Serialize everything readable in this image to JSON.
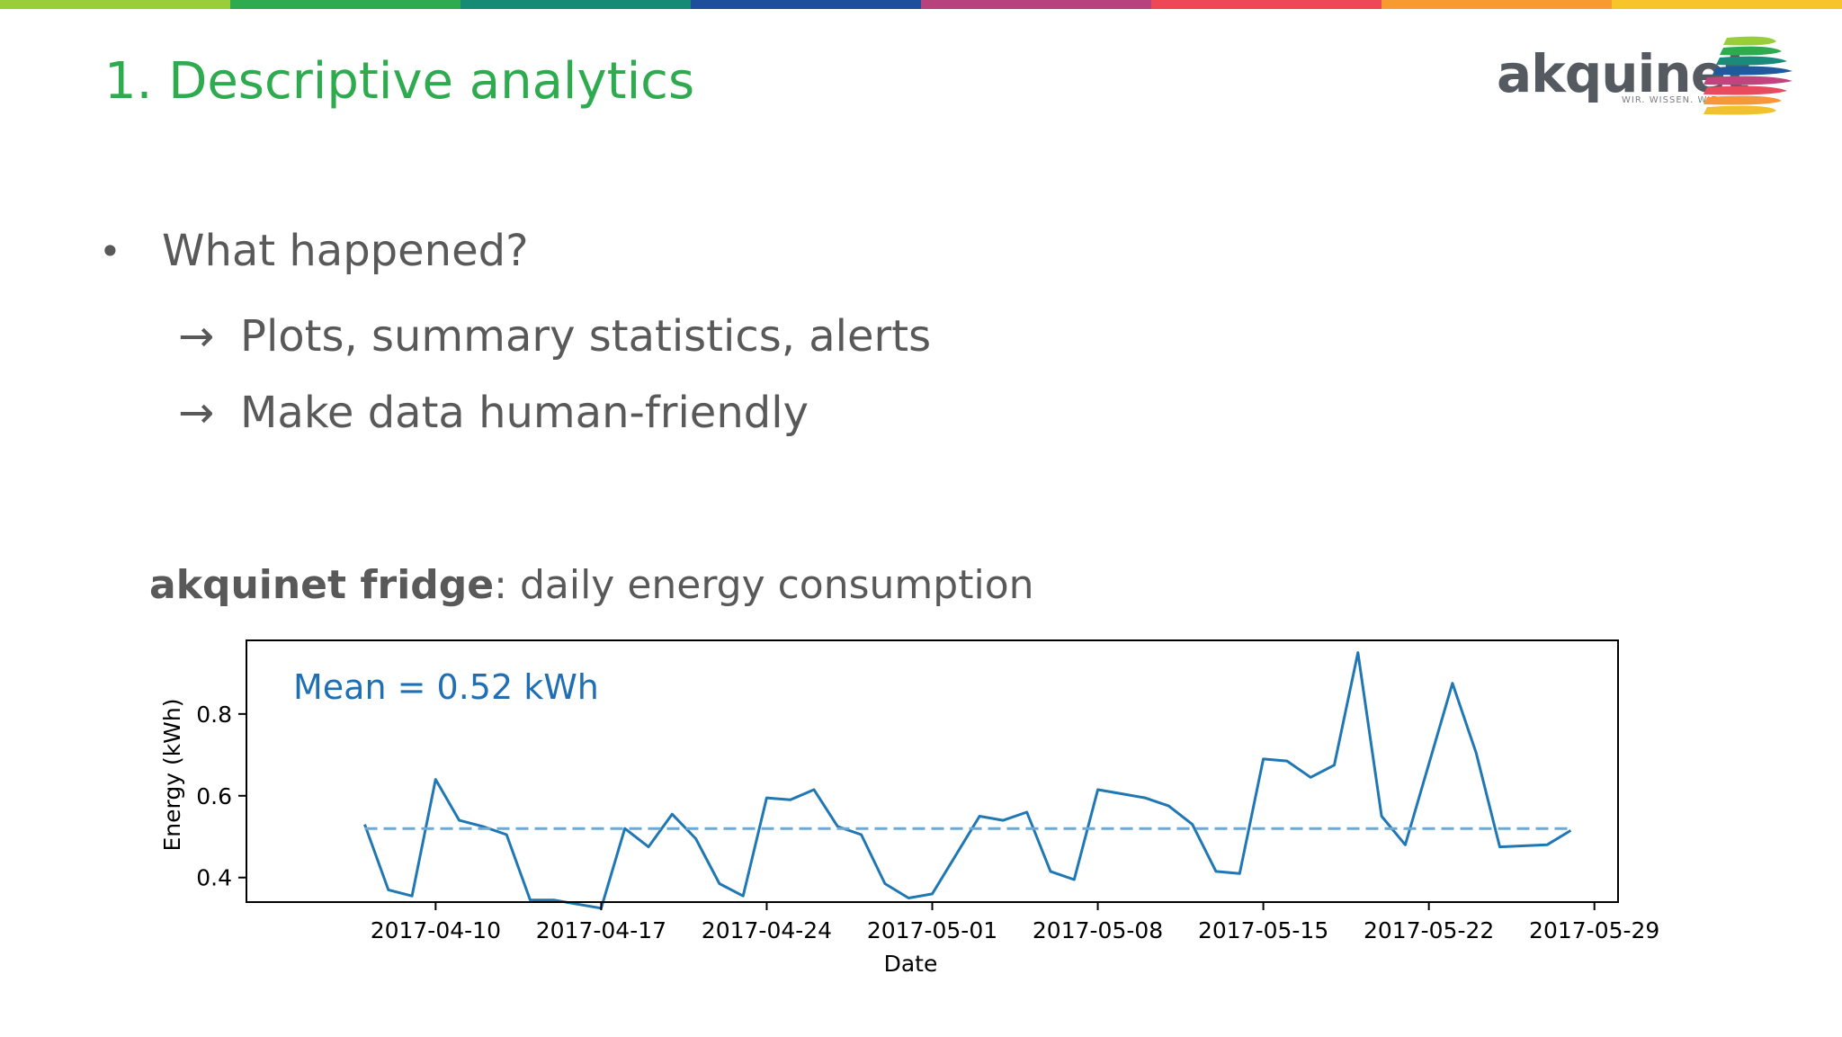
{
  "slide": {
    "title": "1. Descriptive analytics",
    "bullet": "What happened?",
    "sub_bullets": [
      {
        "arrow": "→",
        "text": "Plots, summary statistics, alerts"
      },
      {
        "arrow": "→",
        "text": "Make data human-friendly"
      }
    ],
    "bullet_glyph": "•",
    "caption_bold": "akquinet fridge",
    "caption_rest": ": daily energy consumption",
    "text_color": "#595959",
    "title_color": "#2eaa4f"
  },
  "logo": {
    "word": "akquinet",
    "tagline": "WIR. WISSEN. WIE.",
    "stripe_colors": [
      "#9acd3a",
      "#2eaa4f",
      "#1a8a7a",
      "#1f5aa0",
      "#c0457e",
      "#e84a5f",
      "#f6973a",
      "#f2c12e"
    ]
  },
  "top_stripe_colors": [
    "#9acd3a",
    "#2eaa4f",
    "#158a74",
    "#1d4f9c",
    "#b8427e",
    "#ee4756",
    "#f79a30",
    "#f7c52a"
  ],
  "chart_data": {
    "type": "line",
    "title": "",
    "xlabel": "Date",
    "ylabel": "Energy (kWh)",
    "annotation": "Mean = 0.52 kWh",
    "x_tick_labels": [
      "2017-04-10",
      "2017-04-17",
      "2017-04-24",
      "2017-05-01",
      "2017-05-08",
      "2017-05-15",
      "2017-05-22",
      "2017-05-29"
    ],
    "y_ticks": [
      0.4,
      0.6,
      0.8
    ],
    "xlim": [
      "2017-04-02",
      "2017-05-30"
    ],
    "ylim": [
      0.34,
      0.98
    ],
    "grid": false,
    "series": [
      {
        "color": "#1f77b4",
        "points": [
          [
            "2017-04-07",
            0.53
          ],
          [
            "2017-04-08",
            0.37
          ],
          [
            "2017-04-09",
            0.355
          ],
          [
            "2017-04-10",
            0.64
          ],
          [
            "2017-04-11",
            0.54
          ],
          [
            "2017-04-12",
            0.525
          ],
          [
            "2017-04-13",
            0.505
          ],
          [
            "2017-04-14",
            0.345
          ],
          [
            "2017-04-15",
            0.345
          ],
          [
            "2017-04-16",
            0.335
          ],
          [
            "2017-04-17",
            0.325
          ],
          [
            "2017-04-18",
            0.52
          ],
          [
            "2017-04-19",
            0.475
          ],
          [
            "2017-04-20",
            0.555
          ],
          [
            "2017-04-21",
            0.495
          ],
          [
            "2017-04-22",
            0.385
          ],
          [
            "2017-04-23",
            0.355
          ],
          [
            "2017-04-24",
            0.595
          ],
          [
            "2017-04-25",
            0.59
          ],
          [
            "2017-04-26",
            0.615
          ],
          [
            "2017-04-27",
            0.525
          ],
          [
            "2017-04-28",
            0.505
          ],
          [
            "2017-04-29",
            0.385
          ],
          [
            "2017-04-30",
            0.35
          ],
          [
            "2017-05-01",
            0.36
          ],
          [
            "2017-05-02",
            0.455
          ],
          [
            "2017-05-03",
            0.55
          ],
          [
            "2017-05-04",
            0.54
          ],
          [
            "2017-05-05",
            0.56
          ],
          [
            "2017-05-06",
            0.415
          ],
          [
            "2017-05-07",
            0.395
          ],
          [
            "2017-05-08",
            0.615
          ],
          [
            "2017-05-09",
            0.605
          ],
          [
            "2017-05-10",
            0.595
          ],
          [
            "2017-05-11",
            0.575
          ],
          [
            "2017-05-12",
            0.53
          ],
          [
            "2017-05-13",
            0.415
          ],
          [
            "2017-05-14",
            0.41
          ],
          [
            "2017-05-15",
            0.69
          ],
          [
            "2017-05-16",
            0.685
          ],
          [
            "2017-05-17",
            0.645
          ],
          [
            "2017-05-18",
            0.675
          ],
          [
            "2017-05-19",
            0.95
          ],
          [
            "2017-05-20",
            0.55
          ],
          [
            "2017-05-21",
            0.48
          ],
          [
            "2017-05-23",
            0.875
          ],
          [
            "2017-05-24",
            0.705
          ],
          [
            "2017-05-25",
            0.475
          ],
          [
            "2017-05-27",
            0.48
          ],
          [
            "2017-05-28",
            0.515
          ]
        ]
      },
      {
        "name": "Mean",
        "color": "#6fa8d0",
        "style": "dashed",
        "points": [
          [
            "2017-04-07",
            0.52
          ],
          [
            "2017-05-28",
            0.52
          ]
        ]
      }
    ]
  }
}
